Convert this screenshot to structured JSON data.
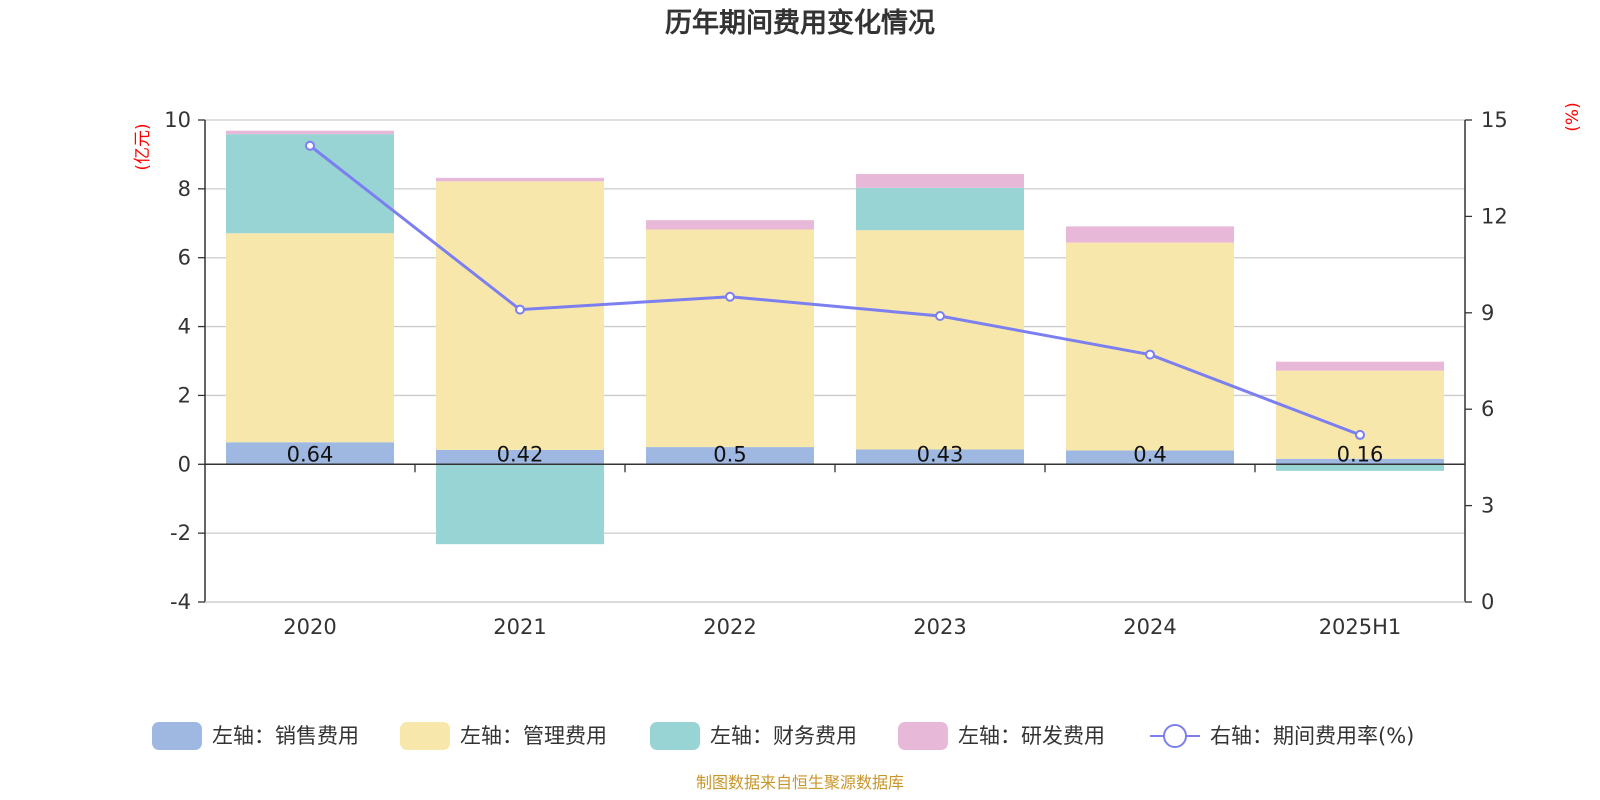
{
  "chart_data": {
    "type": "bar",
    "title": "历年期间费用变化情况",
    "categories": [
      "2020",
      "2021",
      "2022",
      "2023",
      "2024",
      "2025H1"
    ],
    "left_axis": {
      "unit": "(亿元)",
      "ylim": [
        -4,
        10
      ],
      "ticks": [
        "10",
        "8",
        "6",
        "4",
        "2",
        "0",
        "-2",
        "-4"
      ],
      "tick_values": [
        10,
        8,
        6,
        4,
        2,
        0,
        -2,
        -4
      ]
    },
    "right_axis": {
      "unit": "(%)",
      "ylim": [
        0,
        15
      ],
      "ticks": [
        "15",
        "12",
        "9",
        "6",
        "3",
        "0"
      ],
      "tick_values": [
        15,
        12,
        9,
        6,
        3,
        0
      ]
    },
    "series": [
      {
        "name": "左轴：销售费用",
        "type": "bar",
        "axis": "left",
        "color": "#9fb8e2",
        "values": [
          0.64,
          0.42,
          0.5,
          0.43,
          0.4,
          0.16
        ]
      },
      {
        "name": "左轴：管理费用",
        "type": "bar",
        "axis": "left",
        "color": "#f8e7aa",
        "values": [
          6.07,
          7.8,
          6.32,
          6.37,
          6.04,
          2.56
        ]
      },
      {
        "name": "左轴：财务费用",
        "type": "bar",
        "axis": "left",
        "color": "#98d4d4",
        "values": [
          2.88,
          -2.32,
          0,
          1.23,
          0,
          -0.19
        ]
      },
      {
        "name": "左轴：研发费用",
        "type": "bar",
        "axis": "left",
        "color": "#e8b8d8",
        "values": [
          0.1,
          0.1,
          0.27,
          0.4,
          0.47,
          0.26
        ]
      },
      {
        "name": "右轴：期间费用率(%)",
        "type": "line",
        "axis": "right",
        "color": "#7b7ff0",
        "values": [
          14.2,
          9.1,
          9.5,
          8.9,
          7.7,
          5.2
        ]
      }
    ],
    "data_labels": [
      "0.64",
      "0.42",
      "0.5",
      "0.43",
      "0.4",
      "0.16"
    ],
    "grid": true,
    "legend_position": "bottom"
  },
  "source_note": "制图数据来自恒生聚源数据库"
}
